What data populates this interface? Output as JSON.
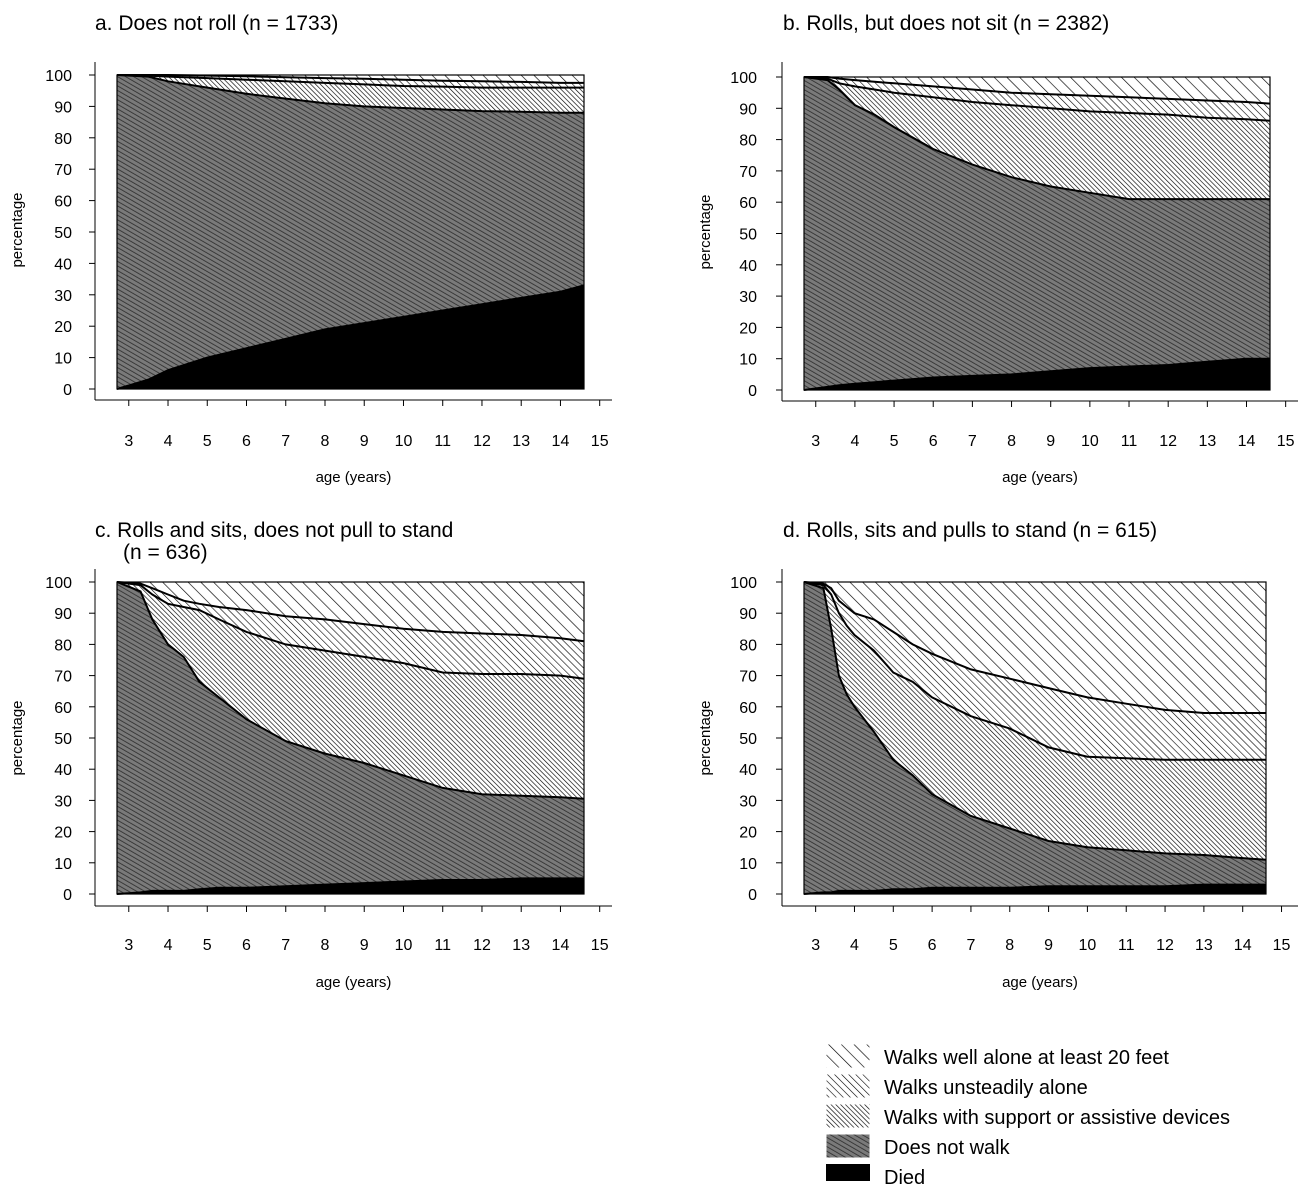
{
  "legend": [
    {
      "label": "Walks well alone at least 20 feet",
      "pattern": "hatch-sparse"
    },
    {
      "label": "Walks unsteadily alone",
      "pattern": "hatch-medium"
    },
    {
      "label": "Walks with support or assistive devices",
      "pattern": "hatch-dense"
    },
    {
      "label": "Does not walk",
      "pattern": "hatch-densest"
    },
    {
      "label": "Died",
      "pattern": "solid-black"
    }
  ],
  "chart_data": [
    {
      "type": "area",
      "title": "a. Does not roll (n = 1733)",
      "xlabel": "age (years)",
      "ylabel": "percentage",
      "xlim": [
        2.7,
        15
      ],
      "ylim": [
        0,
        100
      ],
      "xticks": [
        3,
        4,
        5,
        6,
        7,
        8,
        9,
        10,
        11,
        12,
        13,
        14,
        15
      ],
      "yticks": [
        0,
        10,
        20,
        30,
        40,
        50,
        60,
        70,
        80,
        90,
        100
      ],
      "x": [
        2.7,
        3.5,
        4,
        5,
        6,
        7,
        8,
        9,
        10,
        11,
        12,
        13,
        14,
        14.6
      ],
      "boundaries": [
        {
          "name": "Died",
          "values": [
            0,
            3,
            6,
            10,
            13,
            16,
            19,
            21,
            23,
            25,
            27,
            29,
            31,
            33
          ]
        },
        {
          "name": "Does not walk",
          "values": [
            100,
            99.5,
            98,
            96,
            94,
            92.5,
            91,
            90,
            89.5,
            89,
            88.5,
            88.3,
            88,
            88
          ]
        },
        {
          "name": "Walks with support or assistive devices",
          "values": [
            100,
            99.8,
            99.5,
            99,
            98.5,
            98,
            97.5,
            97,
            96.5,
            96.3,
            96,
            96,
            96,
            96
          ]
        },
        {
          "name": "Walks unsteadily alone",
          "values": [
            100,
            100,
            100,
            99.8,
            99.6,
            99.3,
            99,
            98.8,
            98.5,
            98.2,
            98,
            97.8,
            97.5,
            97.5
          ]
        }
      ]
    },
    {
      "type": "area",
      "title": "b. Rolls, but does not sit (n = 2382)",
      "xlabel": "age (years)",
      "ylabel": "percentage",
      "xlim": [
        2.7,
        15
      ],
      "ylim": [
        0,
        100
      ],
      "xticks": [
        3,
        4,
        5,
        6,
        7,
        8,
        9,
        10,
        11,
        12,
        13,
        14,
        15
      ],
      "yticks": [
        0,
        10,
        20,
        30,
        40,
        50,
        60,
        70,
        80,
        90,
        100
      ],
      "x": [
        2.7,
        3.3,
        3.6,
        4,
        4.5,
        5,
        6,
        7,
        8,
        9,
        10,
        11,
        12,
        13,
        14,
        14.6
      ],
      "boundaries": [
        {
          "name": "Died",
          "values": [
            0,
            1,
            1.5,
            2,
            2.5,
            3,
            4,
            4.5,
            5,
            6,
            7,
            7.5,
            8,
            9,
            10,
            10
          ]
        },
        {
          "name": "Does not walk",
          "values": [
            100,
            99,
            96,
            91,
            88,
            84,
            77,
            72,
            68,
            65,
            63,
            61,
            61,
            61,
            61,
            61
          ]
        },
        {
          "name": "Walks with support or assistive devices",
          "values": [
            100,
            99.5,
            98,
            97,
            96,
            95,
            93.5,
            92,
            91,
            90,
            89,
            88.5,
            88,
            87,
            86.5,
            86
          ]
        },
        {
          "name": "Walks unsteadily alone",
          "values": [
            100,
            100,
            99.5,
            99,
            98.5,
            98,
            97,
            96,
            95,
            94.5,
            94,
            93.5,
            93,
            92.5,
            92,
            91.5
          ]
        }
      ]
    },
    {
      "type": "area",
      "title": "c. Rolls and sits, does not pull to stand",
      "subtitle": "(n = 636)",
      "xlabel": "age (years)",
      "ylabel": "percentage",
      "xlim": [
        2.7,
        15
      ],
      "ylim": [
        0,
        100
      ],
      "xticks": [
        3,
        4,
        5,
        6,
        7,
        8,
        9,
        10,
        11,
        12,
        13,
        14,
        15
      ],
      "yticks": [
        0,
        10,
        20,
        30,
        40,
        50,
        60,
        70,
        80,
        90,
        100
      ],
      "x": [
        2.7,
        3.3,
        3.6,
        4,
        4.4,
        4.8,
        5.3,
        6,
        7,
        8,
        9,
        10,
        11,
        12,
        13,
        14,
        14.6
      ],
      "boundaries": [
        {
          "name": "Died",
          "values": [
            0,
            0.5,
            1,
            1,
            1,
            1.5,
            2,
            2,
            2.5,
            3,
            3.5,
            4,
            4.5,
            4.5,
            5,
            5,
            5
          ]
        },
        {
          "name": "Does not walk",
          "values": [
            100,
            97,
            88,
            80,
            76,
            68,
            63,
            56,
            49,
            45,
            42,
            38,
            34,
            32,
            31.5,
            31,
            30.5
          ]
        },
        {
          "name": "Walks with support or assistive devices",
          "values": [
            100,
            99,
            96,
            93,
            92,
            91,
            88,
            84,
            80,
            78,
            76,
            74,
            71,
            70.5,
            70.5,
            70,
            69
          ]
        },
        {
          "name": "Walks unsteadily alone",
          "values": [
            100,
            99.5,
            98,
            96,
            94,
            93,
            92,
            91,
            89,
            88,
            86.5,
            85,
            84,
            83.5,
            83,
            82,
            81
          ]
        }
      ]
    },
    {
      "type": "area",
      "title": "d. Rolls, sits and pulls to stand (n = 615)",
      "xlabel": "age (years)",
      "ylabel": "percentage",
      "xlim": [
        2.7,
        15
      ],
      "ylim": [
        0,
        100
      ],
      "xticks": [
        3,
        4,
        5,
        6,
        7,
        8,
        9,
        10,
        11,
        12,
        13,
        14,
        15
      ],
      "yticks": [
        0,
        10,
        20,
        30,
        40,
        50,
        60,
        70,
        80,
        90,
        100
      ],
      "x": [
        2.7,
        3.2,
        3.4,
        3.6,
        3.8,
        4,
        4.5,
        5,
        5.5,
        6,
        7,
        8,
        9,
        10,
        11,
        12,
        13,
        14,
        14.6
      ],
      "boundaries": [
        {
          "name": "Died",
          "values": [
            0,
            0.5,
            0.5,
            1,
            1,
            1,
            1,
            1.5,
            1.5,
            2,
            2,
            2,
            2.5,
            2.5,
            2.5,
            2.5,
            3,
            3,
            3
          ]
        },
        {
          "name": "Does not walk",
          "values": [
            100,
            98,
            85,
            70,
            64,
            60,
            52,
            43,
            38,
            32,
            25,
            21,
            17,
            15,
            14,
            13,
            12.5,
            11.5,
            11
          ]
        },
        {
          "name": "Walks with support or assistive devices",
          "values": [
            100,
            99,
            96,
            90,
            86,
            83,
            78,
            71,
            68,
            63,
            57,
            53,
            47,
            44,
            43.5,
            43,
            43,
            43,
            43
          ]
        },
        {
          "name": "Walks unsteadily alone",
          "values": [
            100,
            99.5,
            98,
            94,
            92,
            90,
            88,
            84,
            80,
            77,
            72,
            69,
            66,
            63,
            61,
            59,
            58,
            58,
            58
          ]
        }
      ]
    }
  ]
}
